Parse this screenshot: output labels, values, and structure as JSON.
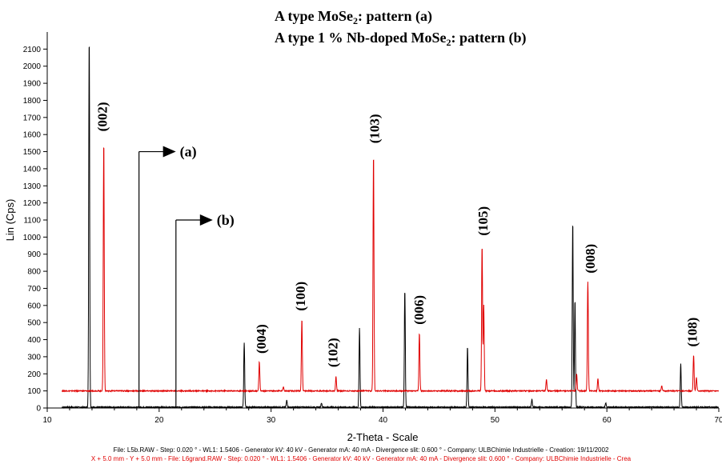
{
  "chart_data": {
    "type": "line",
    "title_lines": [
      {
        "prefix": "A type MoSe",
        "sub": "2",
        "suffix": ": pattern (a)"
      },
      {
        "prefix": "A type 1  % Nb-doped MoSe",
        "sub": "2",
        "suffix": ": pattern (b)"
      }
    ],
    "xlabel": "2-Theta - Scale",
    "ylabel": "Lin (Cps)",
    "xlim": [
      10,
      70
    ],
    "ylim": [
      0,
      2200
    ],
    "x_ticks": [
      10,
      20,
      30,
      40,
      50,
      60,
      70
    ],
    "y_ticks": [
      0,
      100,
      200,
      300,
      400,
      500,
      600,
      700,
      800,
      900,
      1000,
      1100,
      1200,
      1300,
      1400,
      1500,
      1600,
      1700,
      1800,
      1900,
      2000,
      2100
    ],
    "grid": false,
    "series": [
      {
        "marker_label": "(a)",
        "color": "#000000",
        "baseline": 5,
        "marker_x": 18.2,
        "marker_top": 1500,
        "peaks": [
          {
            "x": 13.75,
            "y": 2170
          },
          {
            "x": 27.6,
            "y": 380
          },
          {
            "x": 31.4,
            "y": 45
          },
          {
            "x": 34.5,
            "y": 30
          },
          {
            "x": 37.9,
            "y": 470
          },
          {
            "x": 41.95,
            "y": 690
          },
          {
            "x": 47.55,
            "y": 360
          },
          {
            "x": 53.3,
            "y": 50
          },
          {
            "x": 56.95,
            "y": 1090
          },
          {
            "x": 57.15,
            "y": 630
          },
          {
            "x": 59.9,
            "y": 30
          },
          {
            "x": 66.6,
            "y": 260
          }
        ]
      },
      {
        "marker_label": "(b)",
        "color": "#e00000",
        "baseline": 100,
        "marker_x": 21.5,
        "marker_top": 1100,
        "peaks": [
          {
            "x": 15.05,
            "y": 1560
          },
          {
            "x": 28.95,
            "y": 270
          },
          {
            "x": 31.1,
            "y": 125
          },
          {
            "x": 32.75,
            "y": 520
          },
          {
            "x": 35.8,
            "y": 185
          },
          {
            "x": 39.15,
            "y": 1490
          },
          {
            "x": 43.25,
            "y": 440
          },
          {
            "x": 48.85,
            "y": 950
          },
          {
            "x": 49.0,
            "y": 600
          },
          {
            "x": 54.6,
            "y": 170
          },
          {
            "x": 57.3,
            "y": 200
          },
          {
            "x": 58.3,
            "y": 740
          },
          {
            "x": 59.2,
            "y": 170
          },
          {
            "x": 64.9,
            "y": 130
          },
          {
            "x": 67.75,
            "y": 310
          },
          {
            "x": 68.0,
            "y": 180
          }
        ]
      }
    ],
    "peak_labels": [
      {
        "text": "(002)",
        "x": 14.9,
        "y": 1590
      },
      {
        "text": "(004)",
        "x": 29.1,
        "y": 290
      },
      {
        "text": "(100)",
        "x": 32.6,
        "y": 540
      },
      {
        "text": "(102)",
        "x": 35.5,
        "y": 210
      },
      {
        "text": "(103)",
        "x": 39.2,
        "y": 1520
      },
      {
        "text": "(006)",
        "x": 43.2,
        "y": 460
      },
      {
        "text": "(105)",
        "x": 48.9,
        "y": 980
      },
      {
        "text": "(008)",
        "x": 58.5,
        "y": 760
      },
      {
        "text": "(108)",
        "x": 67.6,
        "y": 330
      }
    ]
  },
  "footer": {
    "line1": "File: L5b.RAW - Step: 0.020 ° - WL1: 1.5406 - Generator kV: 40 kV - Generator mA: 40 mA - Divergence slit: 0.600 ° - Company: ULBChimie Industrielle - Creation: 19/11/2002",
    "line2": "X + 5.0 mm - Y + 5.0 mm - File: L6grand.RAW - Step: 0.020 ° - WL1: 1.5406 - Generator kV: 40 kV - Generator mA: 40 mA - Divergence slit: 0.600 ° - Company: ULBChimie Industrielle - Crea",
    "line2_color": "#e00000"
  }
}
